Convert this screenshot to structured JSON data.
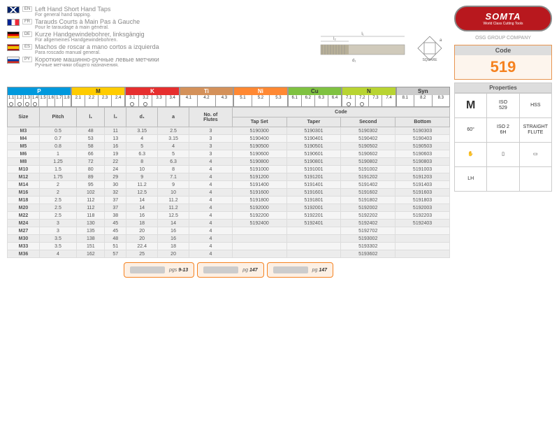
{
  "langs": [
    {
      "code": "EN",
      "flag": "en",
      "title": "Left Hand Short Hand Taps",
      "sub": "For general hand tapping."
    },
    {
      "code": "FR",
      "flag": "fr",
      "title": "Tarauds Courts à Main Pas à Gauche",
      "sub": "Pour le taraudage à main général."
    },
    {
      "code": "DE",
      "flag": "de",
      "title": "Kurze Handgewindebohrer, linksgängig",
      "sub": "Für allgemeines Handgewindebohren."
    },
    {
      "code": "ES",
      "flag": "es",
      "title": "Machos de roscar a mano cortos a izquierda",
      "sub": "Para roscado manual general."
    },
    {
      "code": "PY",
      "flag": "ru",
      "title": "Короткие машинно-ручные левые метчики",
      "sub": "Ручные метчики общего назначения."
    }
  ],
  "logo": {
    "name": "SOMTA",
    "tag": "World Class Cutting Tools"
  },
  "osg": "OSG GROUP COMPANY",
  "code": {
    "label": "Code",
    "value": "519"
  },
  "props": {
    "label": "Properties",
    "cells": [
      "M",
      "ISO\n529",
      "HSS",
      "60°",
      "ISO 2\n6H",
      "STRAIGHT\nFLUTE",
      "✋",
      "▯",
      "▭",
      "LH",
      "",
      ""
    ]
  },
  "diagram": {
    "l1": "l₁",
    "l2": "l₂",
    "d1": "d₁",
    "a": "a",
    "sq": "SQUARE"
  },
  "materials": [
    {
      "name": "P",
      "color": "#0099dd",
      "cells": [
        "1.1",
        "1.2",
        "1.3",
        "1.4",
        "1.5",
        "1.6",
        "1.7",
        "1.8"
      ],
      "dots": [
        0,
        1,
        2,
        3
      ]
    },
    {
      "name": "M",
      "color": "#ffcc00",
      "cells": [
        "2.1",
        "2.2",
        "2.3",
        "2.4"
      ],
      "dots": []
    },
    {
      "name": "K",
      "color": "#e62e2e",
      "cells": [
        "3.1",
        "3.2",
        "3.3",
        "3.4"
      ],
      "dots": [
        0,
        1
      ]
    },
    {
      "name": "Ti",
      "color": "#d4915a",
      "cells": [
        "4.1",
        "4.2",
        "4.3"
      ],
      "dots": []
    },
    {
      "name": "Ni",
      "color": "#ff8833",
      "cells": [
        "5.1",
        "5.2",
        "5.3"
      ],
      "dots": []
    },
    {
      "name": "Cu",
      "color": "#7fc241",
      "cells": [
        "6.1",
        "6.2",
        "6.3",
        "6.4"
      ],
      "dots": []
    },
    {
      "name": "N",
      "color": "#b8d432",
      "cells": [
        "7.1",
        "7.2",
        "7.3",
        "7.4"
      ],
      "dots": [
        0,
        1
      ]
    },
    {
      "name": "Syn",
      "color": "#cccccc",
      "cells": [
        "8.1",
        "8.2",
        "8.3"
      ],
      "dots": []
    }
  ],
  "headers": {
    "size": "Size",
    "pitch": "Pitch",
    "l1": "l₁",
    "l2": "l₂",
    "d1": "d₁",
    "a": "a",
    "flutes": "No. of\nFlutes",
    "code": "Code",
    "tapset": "Tap Set",
    "taper": "Taper",
    "second": "Second",
    "bottom": "Bottom"
  },
  "rows": [
    [
      "M3",
      "0.5",
      "48",
      "11",
      "3.15",
      "2.5",
      "3",
      "5190300",
      "5190301",
      "5190302",
      "5190303"
    ],
    [
      "M4",
      "0.7",
      "53",
      "13",
      "4",
      "3.15",
      "3",
      "5190400",
      "5190401",
      "5190402",
      "5190403"
    ],
    [
      "M5",
      "0.8",
      "58",
      "16",
      "5",
      "4",
      "3",
      "5190500",
      "5190501",
      "5190502",
      "5190503"
    ],
    [
      "M6",
      "1",
      "66",
      "19",
      "6.3",
      "5",
      "3",
      "5190600",
      "5190601",
      "5190602",
      "5190603"
    ],
    [
      "M8",
      "1.25",
      "72",
      "22",
      "8",
      "6.3",
      "4",
      "5190800",
      "5190801",
      "5190802",
      "5190803"
    ],
    [
      "M10",
      "1.5",
      "80",
      "24",
      "10",
      "8",
      "4",
      "5191000",
      "5191001",
      "5191002",
      "5191003"
    ],
    [
      "M12",
      "1.75",
      "89",
      "29",
      "9",
      "7.1",
      "4",
      "5191200",
      "5191201",
      "5191202",
      "5191203"
    ],
    [
      "M14",
      "2",
      "95",
      "30",
      "11.2",
      "9",
      "4",
      "5191400",
      "5191401",
      "5191402",
      "5191403"
    ],
    [
      "M16",
      "2",
      "102",
      "32",
      "12.5",
      "10",
      "4",
      "5191600",
      "5191601",
      "5191602",
      "5191603"
    ],
    [
      "M18",
      "2.5",
      "112",
      "37",
      "14",
      "11.2",
      "4",
      "5191800",
      "5191801",
      "5191802",
      "5191803"
    ],
    [
      "M20",
      "2.5",
      "112",
      "37",
      "14",
      "11.2",
      "4",
      "5192000",
      "5192001",
      "5192002",
      "5192003"
    ],
    [
      "M22",
      "2.5",
      "118",
      "38",
      "16",
      "12.5",
      "4",
      "5192200",
      "5192201",
      "5192202",
      "5192203"
    ],
    [
      "M24",
      "3",
      "130",
      "45",
      "18",
      "14",
      "4",
      "5192400",
      "5192401",
      "5192402",
      "5192403"
    ],
    [
      "M27",
      "3",
      "135",
      "45",
      "20",
      "16",
      "4",
      "",
      "",
      "5192702",
      ""
    ],
    [
      "M30",
      "3.5",
      "138",
      "48",
      "20",
      "16",
      "4",
      "",
      "",
      "5193002",
      ""
    ],
    [
      "M33",
      "3.5",
      "151",
      "51",
      "22.4",
      "18",
      "4",
      "",
      "",
      "5193302",
      ""
    ],
    [
      "M36",
      "4",
      "162",
      "57",
      "25",
      "20",
      "4",
      "",
      "",
      "5193602",
      ""
    ]
  ],
  "refs": [
    {
      "txt": "pgs",
      "pg": "9-13"
    },
    {
      "txt": "pg",
      "pg": "147"
    },
    {
      "txt": "pg",
      "pg": "147"
    }
  ]
}
